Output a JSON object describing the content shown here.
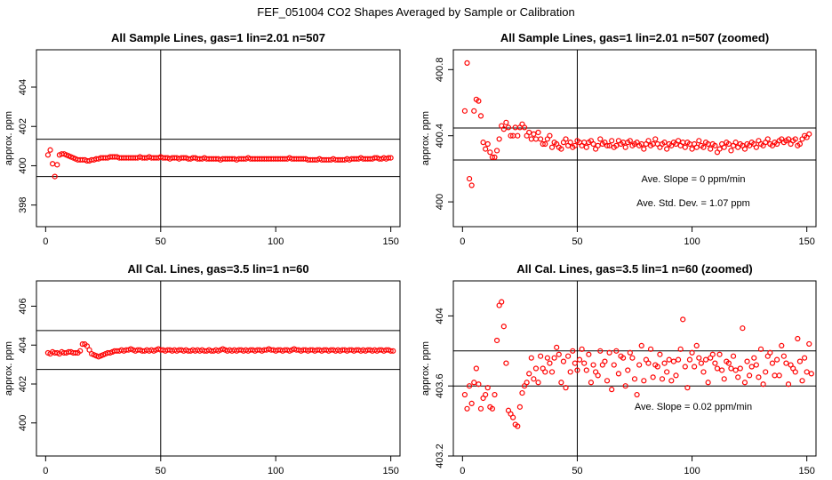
{
  "figure": {
    "title": "FEF_051004  CO2 Shapes Averaged by Sample or Calibration",
    "colors": {
      "points": "#ff0000",
      "lines": "#000000",
      "background": "#ffffff"
    }
  },
  "chart_data": [
    {
      "type": "scatter",
      "title": "All Sample Lines, gas=1 lin=2.01 n=507",
      "xlabel": "",
      "ylabel": "approx. ppm",
      "xlim": [
        -4,
        154
      ],
      "ylim": [
        396.9,
        405.9
      ],
      "xticks": [
        0,
        50,
        100,
        150
      ],
      "yticks": [
        398,
        400,
        402,
        404
      ],
      "hlines": [
        401.35,
        399.45
      ],
      "vline": 50,
      "series": [
        {
          "y": [
            400.55,
            400.8,
            400.1,
            399.45,
            400.05,
            400.55,
            400.6,
            400.6,
            400.55,
            400.5,
            400.45,
            400.4,
            400.35,
            400.3,
            400.3,
            400.3,
            400.3,
            400.25,
            400.25,
            400.3,
            400.3,
            400.35,
            400.35,
            400.4,
            400.4,
            400.4,
            400.4,
            400.45,
            400.45,
            400.45,
            400.45,
            400.4,
            400.4,
            400.4,
            400.4,
            400.4,
            400.4,
            400.4,
            400.4,
            400.4,
            400.45,
            400.4,
            400.4,
            400.4,
            400.45,
            400.4,
            400.4,
            400.4,
            400.4,
            400.45,
            400.4,
            400.4,
            400.4,
            400.35,
            400.4,
            400.4,
            400.4,
            400.35,
            400.4,
            400.4,
            400.4,
            400.35,
            400.35,
            400.4,
            400.4,
            400.35,
            400.35,
            400.35,
            400.4,
            400.35,
            400.35,
            400.35,
            400.35,
            400.35,
            400.35,
            400.3,
            400.35,
            400.35,
            400.35,
            400.35,
            400.35,
            400.35,
            400.3,
            400.35,
            400.35,
            400.35,
            400.35,
            400.4,
            400.35,
            400.35,
            400.35,
            400.35,
            400.35,
            400.35,
            400.35,
            400.35,
            400.35,
            400.35,
            400.35,
            400.35,
            400.35,
            400.35,
            400.35,
            400.35,
            400.35,
            400.4,
            400.35,
            400.35,
            400.35,
            400.35,
            400.35,
            400.35,
            400.35,
            400.3,
            400.3,
            400.3,
            400.3,
            400.3,
            400.35,
            400.3,
            400.3,
            400.3,
            400.3,
            400.3,
            400.35,
            400.3,
            400.3,
            400.3,
            400.3,
            400.3,
            400.35,
            400.3,
            400.35,
            400.35,
            400.35,
            400.35,
            400.4,
            400.35,
            400.35,
            400.35,
            400.35,
            400.35,
            400.4,
            400.4,
            400.35,
            400.35,
            400.4,
            400.35,
            400.4,
            400.4
          ]
        }
      ],
      "annotations": []
    },
    {
      "type": "scatter",
      "title": "All Sample Lines, gas=1 lin=2.01 n=507 (zoomed)",
      "xlabel": "",
      "ylabel": "approx. ppm",
      "xlim": [
        -4,
        154
      ],
      "ylim": [
        399.85,
        400.92
      ],
      "xticks": [
        0,
        50,
        100,
        150
      ],
      "yticks": [
        400.0,
        400.4,
        400.8
      ],
      "hlines": [
        400.447,
        400.253
      ],
      "vline": 50,
      "series": [
        {
          "y": [
            400.55,
            400.84,
            400.14,
            400.1,
            400.55,
            400.62,
            400.61,
            400.52,
            400.36,
            400.32,
            400.35,
            400.3,
            400.27,
            400.27,
            400.31,
            400.38,
            400.46,
            400.44,
            400.48,
            400.45,
            400.4,
            400.4,
            400.45,
            400.4,
            400.45,
            400.47,
            400.45,
            400.4,
            400.42,
            400.38,
            400.41,
            400.38,
            400.42,
            400.38,
            400.35,
            400.35,
            400.38,
            400.4,
            400.33,
            400.36,
            400.35,
            400.33,
            400.32,
            400.36,
            400.38,
            400.34,
            400.36,
            400.33,
            400.34,
            400.37,
            400.36,
            400.34,
            400.36,
            400.33,
            400.36,
            400.37,
            400.35,
            400.32,
            400.34,
            400.38,
            400.35,
            400.36,
            400.34,
            400.34,
            400.37,
            400.33,
            400.34,
            400.37,
            400.35,
            400.36,
            400.33,
            400.36,
            400.37,
            400.34,
            400.35,
            400.36,
            400.34,
            400.35,
            400.32,
            400.35,
            400.37,
            400.34,
            400.35,
            400.38,
            400.35,
            400.33,
            400.35,
            400.36,
            400.32,
            400.35,
            400.34,
            400.36,
            400.35,
            400.37,
            400.34,
            400.36,
            400.33,
            400.36,
            400.35,
            400.32,
            400.35,
            400.33,
            400.37,
            400.34,
            400.33,
            400.36,
            400.35,
            400.32,
            400.35,
            400.34,
            400.3,
            400.32,
            400.35,
            400.33,
            400.36,
            400.35,
            400.31,
            400.34,
            400.36,
            400.33,
            400.35,
            400.34,
            400.32,
            400.35,
            400.34,
            400.36,
            400.35,
            400.33,
            400.37,
            400.35,
            400.34,
            400.36,
            400.38,
            400.35,
            400.34,
            400.36,
            400.35,
            400.37,
            400.38,
            400.36,
            400.37,
            400.38,
            400.35,
            400.37,
            400.38,
            400.34,
            400.35,
            400.38,
            400.4,
            400.39,
            400.41
          ]
        }
      ],
      "annotations": [
        "Ave. Slope =  0  ppm/min",
        "Ave. Std. Dev. =  1.07  ppm"
      ]
    },
    {
      "type": "scatter",
      "title": "All Cal. Lines, gas=3.5 lin=1 n=60",
      "xlabel": "",
      "ylabel": "approx. ppm",
      "xlim": [
        -4,
        154
      ],
      "ylim": [
        398.3,
        407.3
      ],
      "xticks": [
        0,
        50,
        100,
        150
      ],
      "yticks": [
        400,
        402,
        404,
        406
      ],
      "hlines": [
        404.75,
        402.75
      ],
      "vline": 50,
      "series": [
        {
          "y": [
            403.6,
            403.55,
            403.65,
            403.6,
            403.6,
            403.55,
            403.65,
            403.6,
            403.6,
            403.65,
            403.65,
            403.6,
            403.6,
            403.6,
            403.7,
            404.05,
            404.05,
            403.95,
            403.75,
            403.55,
            403.5,
            403.45,
            403.4,
            403.45,
            403.5,
            403.55,
            403.6,
            403.6,
            403.65,
            403.7,
            403.7,
            403.7,
            403.75,
            403.7,
            403.75,
            403.75,
            403.8,
            403.75,
            403.7,
            403.75,
            403.75,
            403.7,
            403.7,
            403.75,
            403.7,
            403.75,
            403.7,
            403.75,
            403.8,
            403.75,
            403.75,
            403.7,
            403.75,
            403.75,
            403.7,
            403.75,
            403.7,
            403.75,
            403.75,
            403.7,
            403.75,
            403.7,
            403.7,
            403.75,
            403.7,
            403.75,
            403.7,
            403.75,
            403.7,
            403.7,
            403.75,
            403.7,
            403.7,
            403.75,
            403.7,
            403.75,
            403.8,
            403.75,
            403.7,
            403.75,
            403.7,
            403.75,
            403.7,
            403.75,
            403.75,
            403.7,
            403.75,
            403.7,
            403.75,
            403.75,
            403.7,
            403.75,
            403.75,
            403.7,
            403.75,
            403.75,
            403.8,
            403.75,
            403.75,
            403.7,
            403.75,
            403.75,
            403.7,
            403.75,
            403.75,
            403.7,
            403.75,
            403.8,
            403.75,
            403.75,
            403.7,
            403.75,
            403.75,
            403.7,
            403.75,
            403.75,
            403.7,
            403.75,
            403.75,
            403.7,
            403.75,
            403.75,
            403.7,
            403.75,
            403.75,
            403.7,
            403.75,
            403.7,
            403.75,
            403.75,
            403.7,
            403.75,
            403.75,
            403.7,
            403.75,
            403.75,
            403.7,
            403.75,
            403.7,
            403.75,
            403.75,
            403.7,
            403.75,
            403.7,
            403.75,
            403.75,
            403.7,
            403.75,
            403.75,
            403.7,
            403.7
          ]
        }
      ],
      "annotations": []
    },
    {
      "type": "scatter",
      "title": "All Cal. Lines, gas=3.5 lin=1 n=60 (zoomed)",
      "xlabel": "",
      "ylabel": "approx. ppm",
      "xlim": [
        -4,
        154
      ],
      "ylim": [
        403.2,
        404.2
      ],
      "xticks": [
        0,
        50,
        100,
        150
      ],
      "yticks": [
        403.2,
        403.6,
        404.0
      ],
      "hlines": [
        403.8,
        403.6
      ],
      "vline": 50,
      "series": [
        {
          "y": [
            403.55,
            403.47,
            403.6,
            403.5,
            403.62,
            403.7,
            403.61,
            403.47,
            403.53,
            403.55,
            403.59,
            403.48,
            403.47,
            403.55,
            403.86,
            404.06,
            404.08,
            403.94,
            403.73,
            403.46,
            403.44,
            403.42,
            403.38,
            403.37,
            403.48,
            403.56,
            403.6,
            403.62,
            403.67,
            403.76,
            403.64,
            403.7,
            403.62,
            403.77,
            403.7,
            403.68,
            403.76,
            403.73,
            403.68,
            403.76,
            403.82,
            403.78,
            403.62,
            403.74,
            403.59,
            403.77,
            403.68,
            403.8,
            403.73,
            403.69,
            403.75,
            403.81,
            403.73,
            403.69,
            403.78,
            403.62,
            403.72,
            403.68,
            403.66,
            403.8,
            403.72,
            403.74,
            403.63,
            403.79,
            403.58,
            403.72,
            403.8,
            403.67,
            403.77,
            403.76,
            403.6,
            403.69,
            403.79,
            403.76,
            403.64,
            403.55,
            403.72,
            403.83,
            403.63,
            403.75,
            403.73,
            403.81,
            403.65,
            403.72,
            403.71,
            403.78,
            403.64,
            403.73,
            403.68,
            403.75,
            403.63,
            403.74,
            403.66,
            403.75,
            403.81,
            403.98,
            403.71,
            403.59,
            403.75,
            403.79,
            403.71,
            403.83,
            403.76,
            403.73,
            403.68,
            403.75,
            403.62,
            403.76,
            403.78,
            403.73,
            403.7,
            403.78,
            403.69,
            403.64,
            403.74,
            403.73,
            403.7,
            403.77,
            403.69,
            403.65,
            403.7,
            403.93,
            403.62,
            403.74,
            403.66,
            403.71,
            403.76,
            403.72,
            403.65,
            403.81,
            403.61,
            403.68,
            403.77,
            403.79,
            403.73,
            403.66,
            403.75,
            403.66,
            403.83,
            403.77,
            403.73,
            403.61,
            403.72,
            403.7,
            403.68,
            403.87,
            403.74,
            403.63,
            403.76,
            403.68,
            403.84,
            403.67
          ]
        }
      ],
      "annotations": [
        "Ave. Slope =  0.02  ppm/min"
      ]
    }
  ]
}
